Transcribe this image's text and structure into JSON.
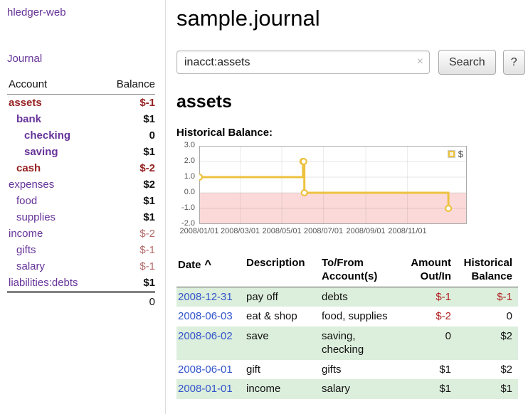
{
  "app": {
    "brand": "hledger-web",
    "nav": {
      "journal": "Journal"
    }
  },
  "sidebar": {
    "table_header": {
      "account": "Account",
      "balance": "Balance"
    },
    "accounts": [
      {
        "name": "assets",
        "depth": 0,
        "name_bold": true,
        "name_maroon": true,
        "balance": "$-1",
        "balance_bold": true
      },
      {
        "name": "bank",
        "depth": 1,
        "name_bold": true,
        "name_maroon": false,
        "balance": "$1",
        "balance_bold": true
      },
      {
        "name": "checking",
        "depth": 2,
        "name_bold": true,
        "name_maroon": false,
        "balance": "0",
        "balance_bold": true
      },
      {
        "name": "saving",
        "depth": 2,
        "name_bold": true,
        "name_maroon": false,
        "balance": "$1",
        "balance_bold": true
      },
      {
        "name": "cash",
        "depth": 1,
        "name_bold": true,
        "name_maroon": true,
        "balance": "$-2",
        "balance_bold": true
      },
      {
        "name": "expenses",
        "depth": 0,
        "name_bold": false,
        "name_maroon": false,
        "balance": "$2",
        "balance_bold": true
      },
      {
        "name": "food",
        "depth": 1,
        "name_bold": false,
        "name_maroon": false,
        "balance": "$1",
        "balance_bold": true
      },
      {
        "name": "supplies",
        "depth": 1,
        "name_bold": false,
        "name_maroon": false,
        "balance": "$1",
        "balance_bold": true
      },
      {
        "name": "income",
        "depth": 0,
        "name_bold": false,
        "name_maroon": false,
        "balance": "$-2",
        "balance_bold": false
      },
      {
        "name": "gifts",
        "depth": 1,
        "name_bold": false,
        "name_maroon": false,
        "balance": "$-1",
        "balance_bold": false
      },
      {
        "name": "salary",
        "depth": 1,
        "name_bold": false,
        "name_maroon": false,
        "balance": "$-1",
        "balance_bold": false
      },
      {
        "name": "liabilities:debts",
        "depth": 0,
        "name_bold": false,
        "name_maroon": false,
        "balance": "$1",
        "balance_bold": true
      }
    ],
    "total": "0"
  },
  "main": {
    "title": "sample.journal",
    "search": {
      "value": "inacct:assets",
      "clear_icon": "×",
      "button_label": "Search",
      "help_label": "?"
    },
    "account_heading": "assets",
    "chart_heading": "Historical Balance:"
  },
  "chart_data": {
    "type": "line",
    "title": "Historical Balance",
    "step": true,
    "x_domain": {
      "start": "2008-01-01",
      "days": 392
    },
    "ylim": [
      -2,
      3
    ],
    "yticks": [
      "3.0",
      "2.0",
      "1.0",
      "0.0",
      "-1.0",
      "-2.0"
    ],
    "xticks": [
      "2008/01/01",
      "2008/03/01",
      "2008/05/01",
      "2008/07/01",
      "2008/09/01",
      "2008/11/01"
    ],
    "series": [
      {
        "name": "$",
        "color": "#edc240",
        "points": [
          {
            "date": "2008-01-01",
            "value": 1
          },
          {
            "date": "2008-06-01",
            "value": 2
          },
          {
            "date": "2008-06-02",
            "value": 2
          },
          {
            "date": "2008-06-03",
            "value": 0
          },
          {
            "date": "2008-12-31",
            "value": -1
          }
        ]
      }
    ],
    "negative_region_fill": "#fbd9d9",
    "legend_position": "top-right",
    "grid": true
  },
  "register": {
    "sort_indicator": "^",
    "columns": [
      {
        "id": "date",
        "lines": [
          "Date"
        ],
        "align": "left",
        "sortable": true
      },
      {
        "id": "description",
        "lines": [
          "Description"
        ],
        "align": "left"
      },
      {
        "id": "accounts",
        "lines": [
          "To/From",
          "Account(s)"
        ],
        "align": "left"
      },
      {
        "id": "amount",
        "lines": [
          "Amount",
          "Out/In"
        ],
        "align": "right"
      },
      {
        "id": "balance",
        "lines": [
          "Historical",
          "Balance"
        ],
        "align": "right"
      }
    ],
    "rows": [
      {
        "date": "2008-12-31",
        "description": "pay off",
        "accounts": "debts",
        "amount": "$-1",
        "balance": "$-1"
      },
      {
        "date": "2008-06-03",
        "description": "eat & shop",
        "accounts": "food, supplies",
        "amount": "$-2",
        "balance": "0"
      },
      {
        "date": "2008-06-02",
        "description": "save",
        "accounts": "saving, checking",
        "amount": "0",
        "balance": "$2"
      },
      {
        "date": "2008-06-01",
        "description": "gift",
        "accounts": "gifts",
        "amount": "$1",
        "balance": "$2"
      },
      {
        "date": "2008-01-01",
        "description": "income",
        "accounts": "salary",
        "amount": "$1",
        "balance": "$1"
      }
    ]
  },
  "colors": {
    "link_purple": "#663399",
    "maroon": "#962222",
    "soft_red": "#b56a6a",
    "register_red": "#b22222",
    "date_blue": "#3355cc",
    "row_green": "#dceedc",
    "chart_line": "#edc240",
    "chart_negative_fill": "#fbd9d9"
  }
}
